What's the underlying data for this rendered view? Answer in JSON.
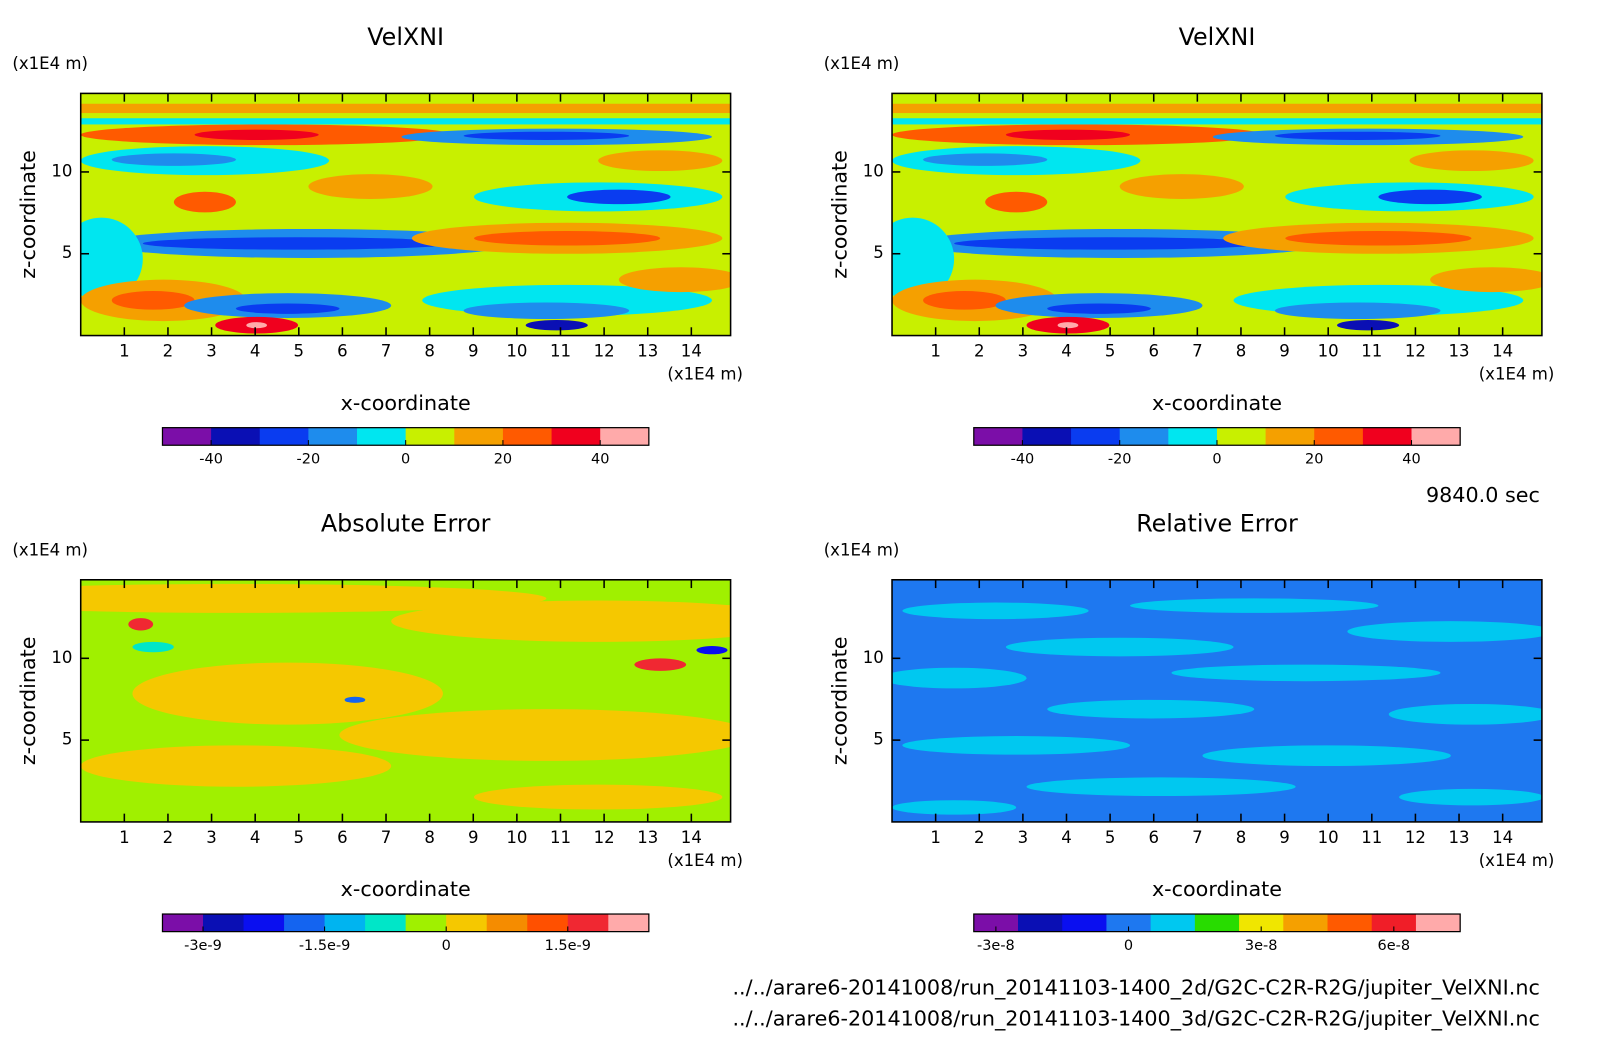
{
  "chart_data": [
    {
      "type": "contour",
      "title": "VelXNI",
      "xlabel": "x-coordinate",
      "ylabel": "z-coordinate",
      "x_unit": "(x1E4 m)",
      "y_unit": "(x1E4 m)",
      "xlim": [
        0,
        14.9
      ],
      "xticks": [
        1,
        2,
        3,
        4,
        5,
        6,
        7,
        8,
        9,
        10,
        11,
        12,
        13,
        14
      ],
      "ylim": [
        0,
        14.8
      ],
      "yticks": [
        5,
        10
      ],
      "colorbar": {
        "clim": [
          -50,
          50
        ],
        "colors": [
          "#7b0ea8",
          "#0a0fb4",
          "#0a3cf0",
          "#1e8ced",
          "#00e6f0",
          "#c8f000",
          "#f5a000",
          "#ff5a00",
          "#f0001e",
          "#ffaaaa"
        ],
        "ticks": [
          -40,
          -20,
          0,
          20,
          40
        ]
      }
    },
    {
      "type": "contour",
      "title": "VelXNI",
      "xlabel": "x-coordinate",
      "ylabel": "z-coordinate",
      "x_unit": "(x1E4 m)",
      "y_unit": "(x1E4 m)",
      "xlim": [
        0,
        14.9
      ],
      "xticks": [
        1,
        2,
        3,
        4,
        5,
        6,
        7,
        8,
        9,
        10,
        11,
        12,
        13,
        14
      ],
      "ylim": [
        0,
        14.8
      ],
      "yticks": [
        5,
        10
      ],
      "colorbar": {
        "clim": [
          -50,
          50
        ],
        "colors": [
          "#7b0ea8",
          "#0a0fb4",
          "#0a3cf0",
          "#1e8ced",
          "#00e6f0",
          "#c8f000",
          "#f5a000",
          "#ff5a00",
          "#f0001e",
          "#ffaaaa"
        ],
        "ticks": [
          -40,
          -20,
          0,
          20,
          40
        ]
      }
    },
    {
      "type": "contour",
      "title": "Absolute Error",
      "xlabel": "x-coordinate",
      "ylabel": "z-coordinate",
      "x_unit": "(x1E4 m)",
      "y_unit": "(x1E4 m)",
      "xlim": [
        0,
        14.9
      ],
      "xticks": [
        1,
        2,
        3,
        4,
        5,
        6,
        7,
        8,
        9,
        10,
        11,
        12,
        13,
        14
      ],
      "ylim": [
        0,
        14.8
      ],
      "yticks": [
        5,
        10
      ],
      "colorbar": {
        "clim": [
          -3.5e-09,
          2.5e-09
        ],
        "colors": [
          "#7b0ea8",
          "#0a0fb4",
          "#0a0ff0",
          "#1464f0",
          "#00b4f0",
          "#00e6c8",
          "#a0f000",
          "#f5c800",
          "#f58c00",
          "#ff5000",
          "#f02832",
          "#ffaaaa"
        ],
        "ticks": [
          {
            "value": -3e-09,
            "label": "-3e-9"
          },
          {
            "value": -1.5e-09,
            "label": "-1.5e-9"
          },
          0,
          {
            "value": 1.5e-09,
            "label": "1.5e-9"
          }
        ]
      }
    },
    {
      "type": "contour",
      "title": "Relative Error",
      "xlabel": "x-coordinate",
      "ylabel": "z-coordinate",
      "x_unit": "(x1E4 m)",
      "y_unit": "(x1E4 m)",
      "xlim": [
        0,
        14.9
      ],
      "xticks": [
        1,
        2,
        3,
        4,
        5,
        6,
        7,
        8,
        9,
        10,
        11,
        12,
        13,
        14
      ],
      "ylim": [
        0,
        14.8
      ],
      "yticks": [
        5,
        10
      ],
      "colorbar": {
        "clim": [
          -3.5e-08,
          7.5e-08
        ],
        "colors": [
          "#7b0ea8",
          "#0a0fb4",
          "#0a0ff0",
          "#1e78f0",
          "#00c8f0",
          "#28dc00",
          "#f0e600",
          "#f5a000",
          "#ff5a00",
          "#f01e28",
          "#ffaaaa"
        ],
        "ticks": [
          {
            "value": -3e-08,
            "label": "-3e-8"
          },
          0,
          {
            "value": 3e-08,
            "label": "3e-8"
          },
          {
            "value": 6e-08,
            "label": "6e-8"
          }
        ]
      }
    }
  ],
  "time_label": "9840.0 sec",
  "files": [
    "../../arare6-20141008/run_20141103-1400_2d/G2C-C2R-R2G/jupiter_VelXNI.nc",
    "../../arare6-20141008/run_20141103-1400_3d/G2C-C2R-R2G/jupiter_VelXNI.nc"
  ]
}
